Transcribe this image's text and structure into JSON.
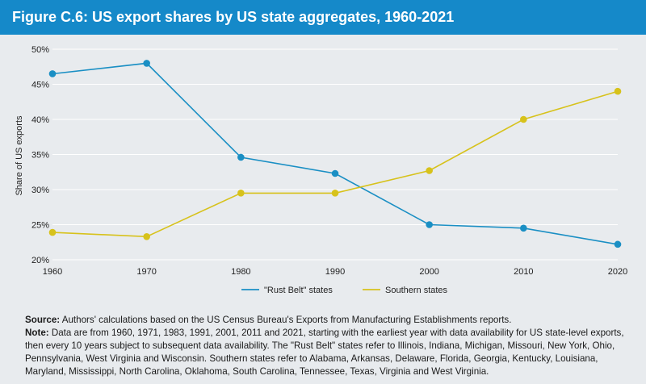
{
  "title": "Figure C.6: US export shares by US state aggregates, 1960-2021",
  "chart_data": {
    "type": "line",
    "title": "Figure C.6: US export shares by US state aggregates, 1960-2021",
    "xlabel": "",
    "ylabel": "Share of US exports",
    "x": [
      1960,
      1970,
      1980,
      1990,
      2000,
      2010,
      2020
    ],
    "x_tick_labels": [
      "1960",
      "1970",
      "1980",
      "1990",
      "2000",
      "2010",
      "2020"
    ],
    "y_tick_labels": [
      "20%",
      "25%",
      "30%",
      "35%",
      "40%",
      "45%",
      "50%"
    ],
    "ylim": [
      20,
      50
    ],
    "grid": "horizontal",
    "legend": "bottom",
    "series": [
      {
        "name": "\"Rust Belt\" states",
        "color": "#1a8fc4",
        "values": [
          46.5,
          48.0,
          34.6,
          32.3,
          25.0,
          24.5,
          22.2
        ]
      },
      {
        "name": "Southern states",
        "color": "#d7c21b",
        "values": [
          23.9,
          23.3,
          29.5,
          29.5,
          32.7,
          40.0,
          44.0
        ]
      }
    ]
  },
  "notes": {
    "source_label": "Source:",
    "source_text": " Authors' calculations based on the US Census Bureau's Exports from Manufacturing Establishments reports.",
    "note_label": "Note:",
    "note_text": " Data are from 1960, 1971, 1983, 1991, 2001, 2011 and 2021, starting with the earliest year with data availability for US state-level exports, then every 10 years subject to subsequent data availability. The \"Rust Belt\" states refer to Illinois, Indiana, Michigan, Missouri, New York, Ohio, Pennsylvania, West Virginia and Wisconsin. Southern states refer to Alabama, Arkansas, Delaware, Florida, Georgia, Kentucky, Louisiana, Maryland, Mississippi, North Carolina, Oklahoma, South Carolina, Tennessee, Texas, Virginia and West Virginia."
  }
}
